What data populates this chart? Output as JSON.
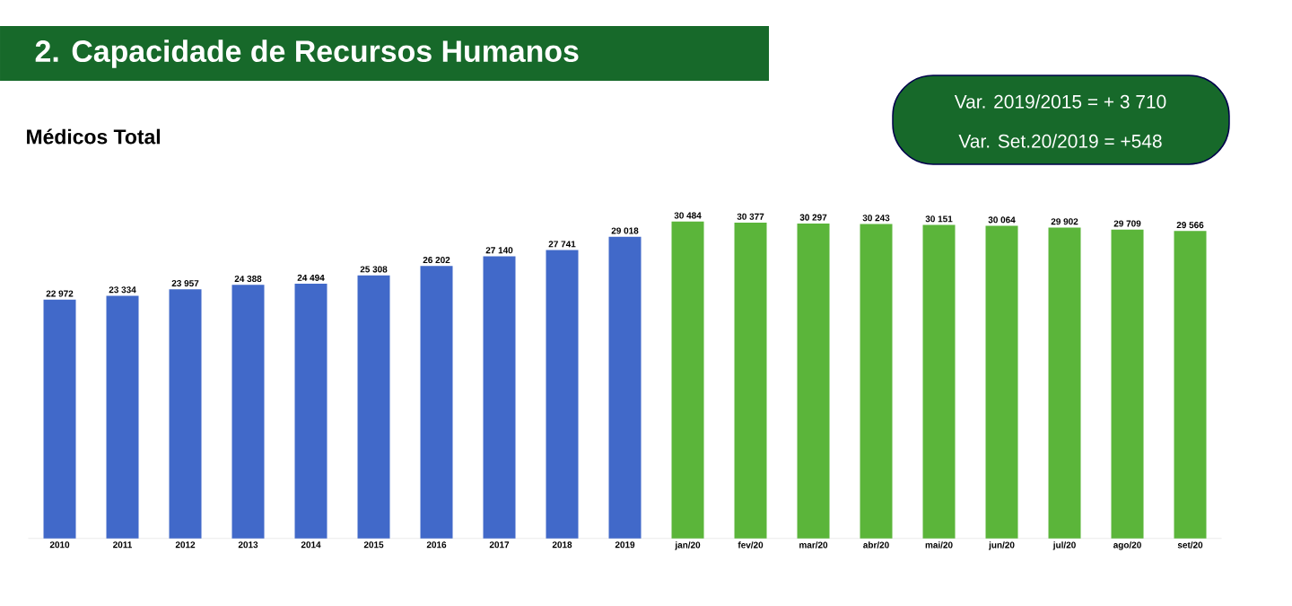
{
  "chart_data": {
    "type": "bar",
    "title": "2. Capacidade de Recursos Humanos",
    "subtitle": "Médicos Total",
    "annotations": [
      "Var. 2019/2015 = + 3 710",
      "Var. Set.20/2019 = +548"
    ],
    "categories": [
      "2010",
      "2011",
      "2012",
      "2013",
      "2014",
      "2015",
      "2016",
      "2017",
      "2018",
      "2019",
      "jan/20",
      "fev/20",
      "mar/20",
      "abr/20",
      "mai/20",
      "jun/20",
      "jul/20",
      "ago/20",
      "set/20"
    ],
    "values": [
      22972,
      23334,
      23957,
      24388,
      24494,
      25308,
      26202,
      27140,
      27741,
      29018,
      30484,
      30377,
      30297,
      30243,
      30151,
      30064,
      29902,
      29709,
      29566
    ],
    "value_labels": [
      "22 972",
      "23 334",
      "23 957",
      "24 388",
      "24 494",
      "25 308",
      "26 202",
      "27 140",
      "27 741",
      "29 018",
      "30 484",
      "30 377",
      "30 297",
      "30 243",
      "30 151",
      "30 064",
      "29 902",
      "29 709",
      "29 566"
    ],
    "colors": [
      "#4169c9",
      "#4169c9",
      "#4169c9",
      "#4169c9",
      "#4169c9",
      "#4169c9",
      "#4169c9",
      "#4169c9",
      "#4169c9",
      "#4169c9",
      "#5bb53a",
      "#5bb53a",
      "#5bb53a",
      "#5bb53a",
      "#5bb53a",
      "#5bb53a",
      "#5bb53a",
      "#5bb53a",
      "#5bb53a"
    ]
  }
}
